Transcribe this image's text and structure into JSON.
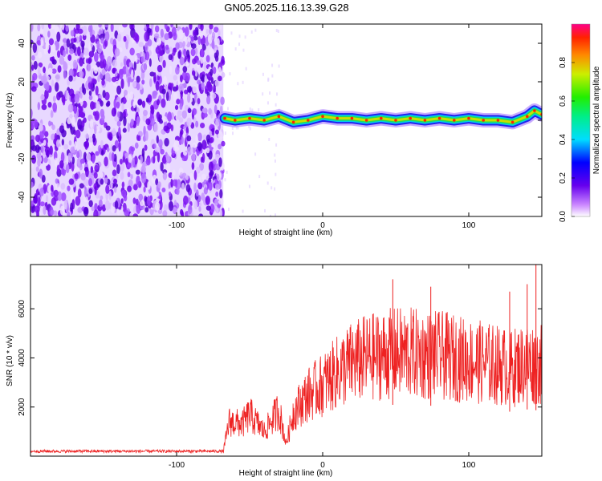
{
  "title": "GN05.2025.116.13.39.G28",
  "chart_data": [
    {
      "type": "heatmap",
      "xlabel": "Height of straight line (km)",
      "ylabel": "Frequency (Hz)",
      "xlim": [
        -200,
        150
      ],
      "ylim": [
        -50,
        50
      ],
      "xticks": [
        -100,
        0,
        100
      ],
      "yticks": [
        -40,
        -20,
        0,
        20,
        40
      ],
      "noise_region_x": [
        -200,
        -68
      ],
      "signal_track": [
        {
          "x": -67,
          "y": 1
        },
        {
          "x": -60,
          "y": 0
        },
        {
          "x": -50,
          "y": 1
        },
        {
          "x": -40,
          "y": 0
        },
        {
          "x": -30,
          "y": 2
        },
        {
          "x": -20,
          "y": -1
        },
        {
          "x": -10,
          "y": 0
        },
        {
          "x": 0,
          "y": 2
        },
        {
          "x": 10,
          "y": 1
        },
        {
          "x": 20,
          "y": 1
        },
        {
          "x": 30,
          "y": 0
        },
        {
          "x": 40,
          "y": 1
        },
        {
          "x": 50,
          "y": 0
        },
        {
          "x": 60,
          "y": 1
        },
        {
          "x": 70,
          "y": 0
        },
        {
          "x": 80,
          "y": 1
        },
        {
          "x": 90,
          "y": 0
        },
        {
          "x": 100,
          "y": 1
        },
        {
          "x": 110,
          "y": 0
        },
        {
          "x": 120,
          "y": 0
        },
        {
          "x": 130,
          "y": -1
        },
        {
          "x": 140,
          "y": 2
        },
        {
          "x": 145,
          "y": 5
        },
        {
          "x": 150,
          "y": 3
        }
      ],
      "colorbar": {
        "label": "Normalized spectral amplitude",
        "range": [
          0,
          1
        ],
        "ticks": [
          0.0,
          0.2,
          0.4,
          0.6,
          0.8
        ]
      }
    },
    {
      "type": "line",
      "xlabel": "Height of straight line (km)",
      "ylabel": "SNR (10 * v/v)",
      "xlim": [
        -200,
        150
      ],
      "ylim": [
        0,
        7800
      ],
      "xticks": [
        -100,
        0,
        100
      ],
      "yticks": [
        2000,
        4000,
        6000
      ],
      "color": "#ee2222",
      "envelope": [
        {
          "x": -200,
          "y": 200
        },
        {
          "x": -140,
          "y": 200
        },
        {
          "x": -68,
          "y": 200
        },
        {
          "x": -64,
          "y": 1400
        },
        {
          "x": -55,
          "y": 1300
        },
        {
          "x": -50,
          "y": 1700
        },
        {
          "x": -40,
          "y": 1000
        },
        {
          "x": -30,
          "y": 1900
        },
        {
          "x": -25,
          "y": 500
        },
        {
          "x": -20,
          "y": 1800
        },
        {
          "x": -10,
          "y": 2500
        },
        {
          "x": 0,
          "y": 2900
        },
        {
          "x": 10,
          "y": 3400
        },
        {
          "x": 20,
          "y": 3800
        },
        {
          "x": 30,
          "y": 4000
        },
        {
          "x": 40,
          "y": 4100
        },
        {
          "x": 50,
          "y": 4200
        },
        {
          "x": 60,
          "y": 4200
        },
        {
          "x": 70,
          "y": 4100
        },
        {
          "x": 80,
          "y": 4100
        },
        {
          "x": 90,
          "y": 4000
        },
        {
          "x": 100,
          "y": 3900
        },
        {
          "x": 110,
          "y": 3800
        },
        {
          "x": 120,
          "y": 3700
        },
        {
          "x": 130,
          "y": 3600
        },
        {
          "x": 140,
          "y": 3800
        },
        {
          "x": 150,
          "y": 3700
        }
      ],
      "spikes": [
        {
          "x": 48,
          "y": 7200
        },
        {
          "x": 146,
          "y": 7900
        },
        {
          "x": 150,
          "y": 7500
        },
        {
          "x": 74,
          "y": 6900
        },
        {
          "x": 128,
          "y": 6700
        },
        {
          "x": 140,
          "y": 7000
        }
      ]
    }
  ]
}
